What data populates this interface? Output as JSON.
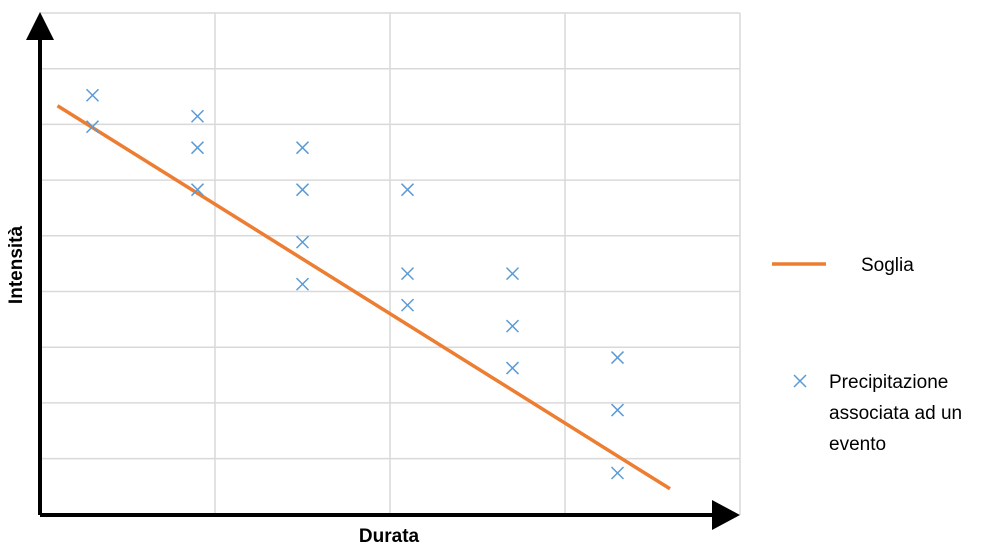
{
  "chart_data": {
    "type": "scatter",
    "title": "",
    "xlabel": "Durata",
    "ylabel": "Intensità",
    "xlim": [
      0,
      4
    ],
    "ylim": [
      0,
      8.5
    ],
    "grid": true,
    "tick_labels": false,
    "legend_position": "right",
    "series": [
      {
        "name": "Soglia",
        "kind": "line",
        "color": "#ED7D31",
        "x": [
          0.1,
          3.6
        ],
        "y": [
          7.8,
          0.5
        ]
      },
      {
        "name": "Precipitazione associata ad un evento",
        "kind": "scatter",
        "marker": "x",
        "color": "#5B9BD5",
        "x": [
          0.3,
          0.3,
          0.9,
          0.9,
          0.9,
          1.5,
          1.5,
          1.5,
          1.5,
          2.1,
          2.1,
          2.1,
          2.7,
          2.7,
          2.7,
          3.3,
          3.3,
          3.3
        ],
        "y": [
          8.0,
          7.4,
          7.6,
          7.0,
          6.2,
          7.0,
          6.2,
          5.2,
          4.4,
          6.2,
          4.6,
          4.0,
          4.6,
          3.6,
          2.8,
          3.0,
          2.0,
          0.8
        ]
      }
    ]
  }
}
